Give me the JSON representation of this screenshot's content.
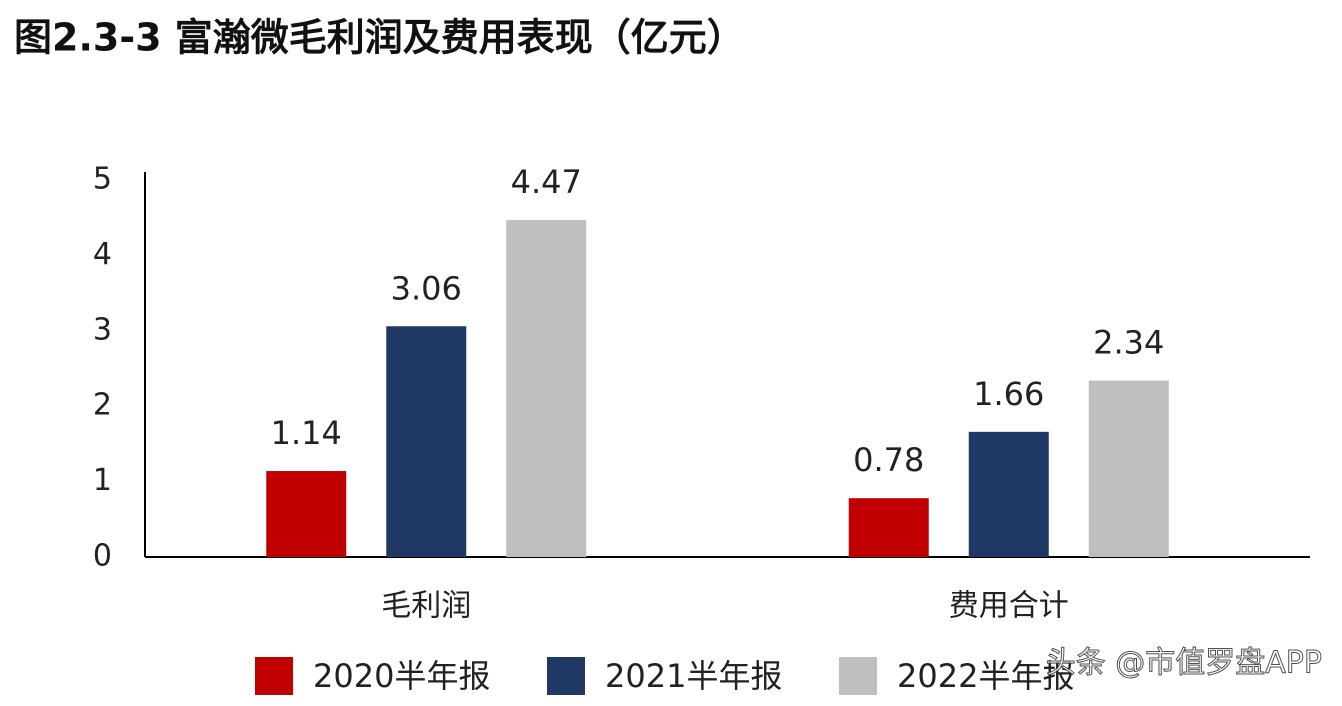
{
  "chart_data": {
    "type": "bar",
    "title": "图2.3-3 富瀚微毛利润及费用表现（亿元）",
    "categories": [
      "毛利润",
      "费用合计"
    ],
    "series": [
      {
        "name": "2020半年报",
        "color": "#c00000",
        "values": [
          1.14,
          0.78
        ]
      },
      {
        "name": "2021半年报",
        "color": "#1f3864",
        "values": [
          3.06,
          1.66
        ]
      },
      {
        "name": "2022半年报",
        "color": "#bfbfbf",
        "values": [
          4.47,
          2.34
        ]
      }
    ],
    "ylim": [
      0,
      5
    ],
    "yticks": [
      0,
      1,
      2,
      3,
      4,
      5
    ],
    "grid": false,
    "watermark": "头条 @市值罗盘APP"
  }
}
